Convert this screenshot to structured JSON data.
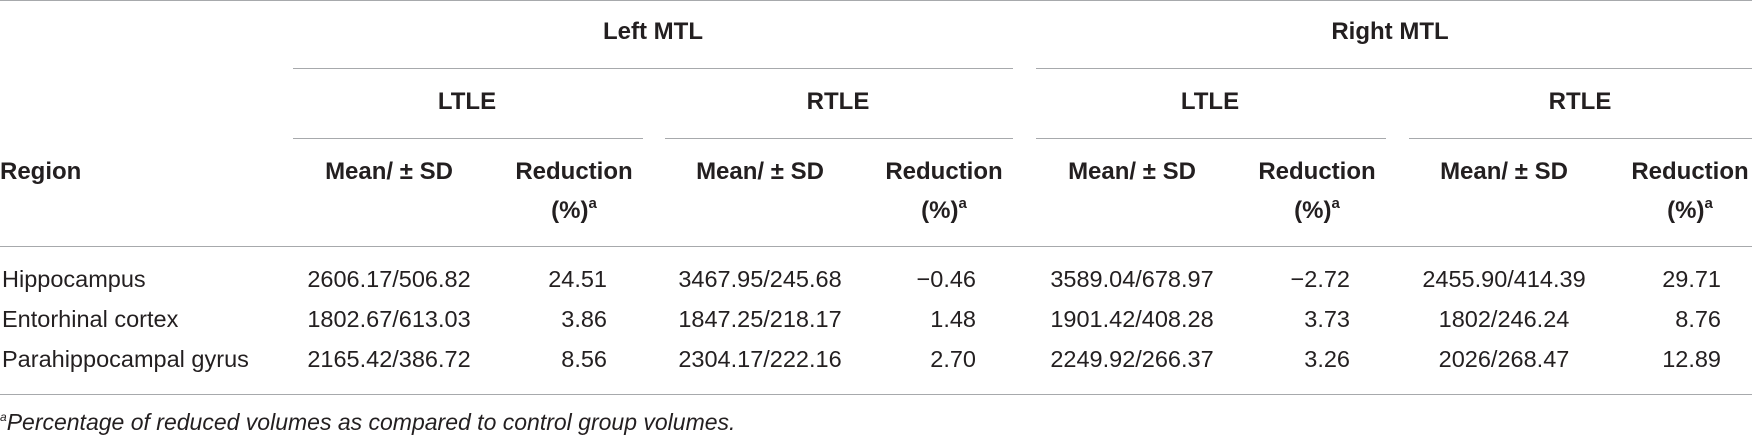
{
  "header": {
    "groups": [
      {
        "label": "Left MTL",
        "subgroups": [
          {
            "label": "LTLE",
            "mean_label": "Mean/ ± SD",
            "reduction_label": "Reduction",
            "reduction_unit": "(%)",
            "reduction_mark": "a"
          },
          {
            "label": "RTLE",
            "mean_label": "Mean/ ± SD",
            "reduction_label": "Reduction",
            "reduction_unit": "(%)",
            "reduction_mark": "a"
          }
        ]
      },
      {
        "label": "Right MTL",
        "subgroups": [
          {
            "label": "LTLE",
            "mean_label": "Mean/ ± SD",
            "reduction_label": "Reduction",
            "reduction_unit": "(%)",
            "reduction_mark": "a"
          },
          {
            "label": "RTLE",
            "mean_label": "Mean/ ± SD",
            "reduction_label": "Reduction",
            "reduction_unit": "(%)",
            "reduction_mark": "a"
          }
        ]
      }
    ],
    "region_label": "Region"
  },
  "rows": [
    {
      "region": "Hippocampus",
      "cells": [
        "2606.17/506.82",
        "24.51",
        "3467.95/245.68",
        "−0.46",
        "3589.04/678.97",
        "−2.72",
        "2455.90/414.39",
        "29.71"
      ]
    },
    {
      "region": "Entorhinal cortex",
      "cells": [
        "1802.67/613.03",
        "3.86",
        "1847.25/218.17",
        "1.48",
        "1901.42/408.28",
        "3.73",
        "1802/246.24",
        "8.76"
      ]
    },
    {
      "region": "Parahippocampal gyrus",
      "cells": [
        "2165.42/386.72",
        "8.56",
        "2304.17/222.16",
        "2.70",
        "2249.92/266.37",
        "3.26",
        "2026/268.47",
        "12.89"
      ]
    }
  ],
  "footnote": {
    "mark": "a",
    "text": "Percentage of reduced volumes as compared to control group volumes."
  }
}
